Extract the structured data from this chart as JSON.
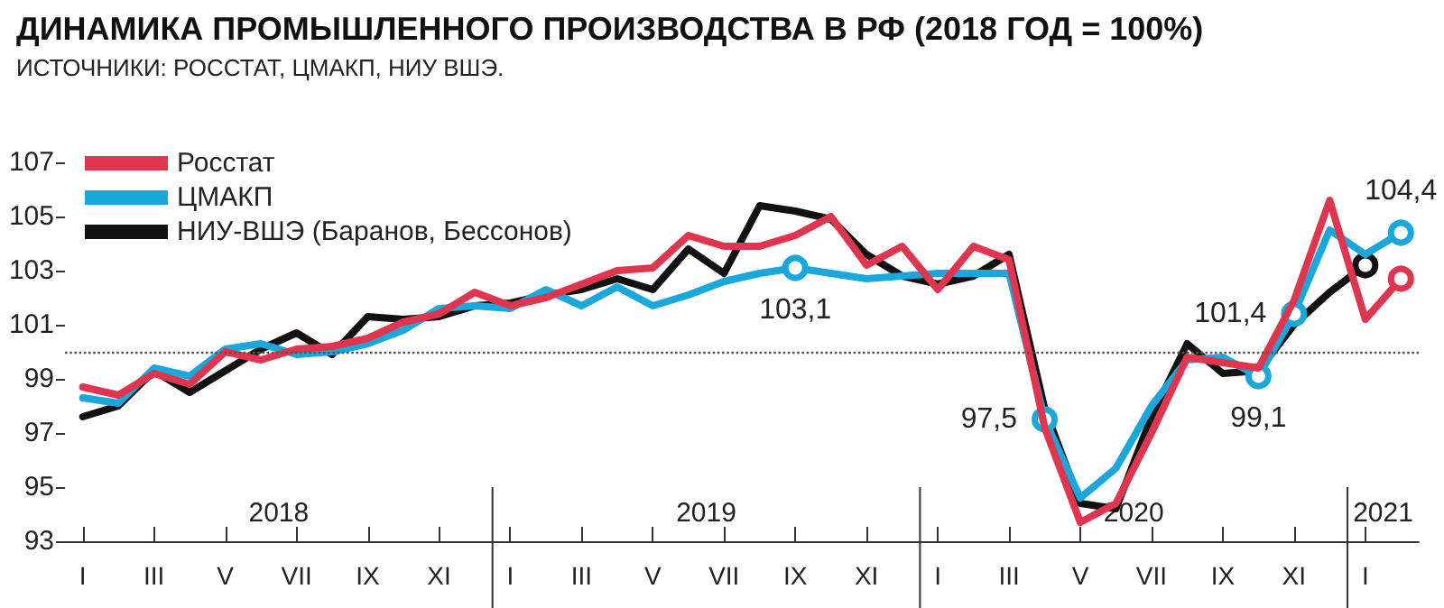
{
  "chart_data": {
    "type": "line",
    "title": "ДИНАМИКА ПРОМЫШЛЕННОГО ПРОИЗВОДСТВА В РФ (2018 ГОД = 100%)",
    "subtitle": "ИСТОЧНИКИ: РОССТАТ, ЦМАКП, НИУ ВШЭ.",
    "categories": [
      "I",
      null,
      "III",
      null,
      "V",
      null,
      "VII",
      null,
      "IX",
      null,
      "XI",
      null,
      "I",
      null,
      "III",
      null,
      "V",
      null,
      "VII",
      null,
      "IX",
      null,
      "XI",
      null,
      "I",
      null,
      "III",
      null,
      "V",
      null,
      "VII",
      null,
      "IX",
      null,
      "XI",
      null,
      "I",
      null
    ],
    "annotations": [
      "2018",
      "2019",
      "2020",
      "2021"
    ],
    "series": [
      {
        "name": "Росстат",
        "color": "#e0354f",
        "values": [
          98.7,
          98.4,
          99.2,
          98.8,
          100.0,
          99.7,
          100.1,
          100.2,
          100.5,
          101.1,
          101.4,
          102.2,
          101.7,
          102.0,
          102.5,
          103.0,
          103.1,
          104.3,
          103.9,
          103.9,
          104.3,
          105.0,
          103.2,
          103.9,
          102.3,
          103.9,
          103.4,
          97.2,
          93.7,
          94.4,
          97.0,
          99.8,
          99.6,
          99.4,
          101.9,
          105.6,
          101.2,
          102.7
        ]
      },
      {
        "name": "ЦМАКП",
        "color": "#1aa7dc",
        "values": [
          98.3,
          98.1,
          99.4,
          99.1,
          100.1,
          100.3,
          99.9,
          100.0,
          100.3,
          100.8,
          101.6,
          101.7,
          101.6,
          102.3,
          101.7,
          102.4,
          101.7,
          102.1,
          102.6,
          102.9,
          103.1,
          102.9,
          102.7,
          102.8,
          102.9,
          102.9,
          102.9,
          97.5,
          94.6,
          95.7,
          98.0,
          99.7,
          99.8,
          99.1,
          101.4,
          104.5,
          103.6,
          104.4
        ],
        "value_labels": [
          null,
          null,
          null,
          null,
          null,
          null,
          null,
          null,
          null,
          null,
          null,
          null,
          null,
          null,
          null,
          null,
          null,
          null,
          null,
          null,
          "103,1",
          null,
          null,
          null,
          null,
          null,
          null,
          "97,5",
          null,
          null,
          null,
          null,
          null,
          "99,1",
          "101,4",
          null,
          null,
          "104,4"
        ]
      },
      {
        "name": "НИУ-ВШЭ (Баранов, Бессонов)",
        "color": "#111111",
        "values": [
          97.6,
          98.0,
          99.3,
          98.5,
          99.3,
          100.1,
          100.7,
          99.9,
          101.3,
          101.2,
          101.3,
          101.7,
          101.8,
          102.1,
          102.3,
          102.7,
          102.3,
          103.8,
          102.9,
          105.4,
          105.2,
          104.9,
          103.6,
          102.8,
          102.5,
          102.8,
          103.6,
          97.9,
          94.4,
          94.2,
          97.6,
          100.3,
          99.2,
          99.3,
          101.0,
          102.2,
          103.2,
          null
        ]
      }
    ],
    "ylim": [
      93,
      107
    ],
    "yticks": [
      93,
      95,
      97,
      99,
      101,
      103,
      105,
      107
    ],
    "ref_lines": [
      {
        "axis": "y",
        "value": 100,
        "line_style": "dotted",
        "color": "#555555"
      }
    ],
    "legend": "top left",
    "grid": false,
    "line_style": "solid"
  }
}
